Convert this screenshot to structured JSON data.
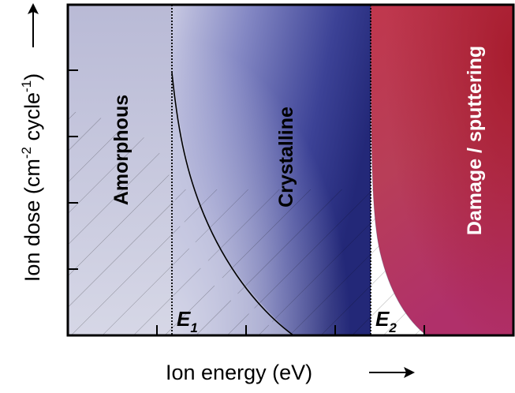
{
  "axes": {
    "x_label": "Ion energy (eV)",
    "y_label_main": "Ion dose (cm",
    "y_label_sup1": "-2",
    "y_label_mid": " cycle",
    "y_label_sup2": "-1",
    "y_label_end": ")"
  },
  "regions": {
    "amorphous": "Amorphous",
    "crystalline": "Crystalline",
    "damage": "Damage / sputtering"
  },
  "thresholds": {
    "e1_letter": "E",
    "e1_sub": "1",
    "e2_letter": "E",
    "e2_sub": "2"
  },
  "colors": {
    "amorphous_fill": "#c5c6dc",
    "crystalline_dark": "#2a2f82",
    "damage_fill": "#b52a3e",
    "frame": "#000000"
  }
}
